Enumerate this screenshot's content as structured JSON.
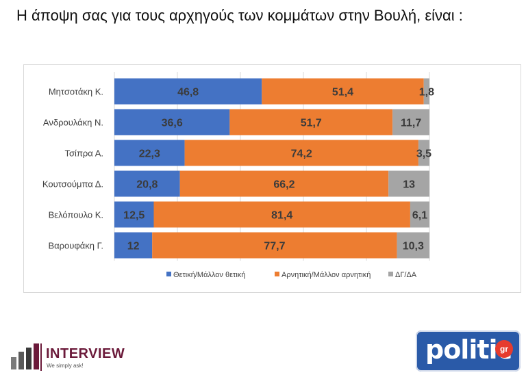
{
  "title": "Η άποψη σας για τους αρχηγούς των κομμάτων στην Βουλή,  είναι :",
  "chart_data": {
    "type": "bar",
    "orientation": "horizontal",
    "stacked": true,
    "title": "",
    "categories": [
      "Μητσοτάκη Κ.",
      "Ανδρουλάκη Ν.",
      "Τσίπρα Α.",
      "Κουτσούμπα Δ.",
      "Βελόπουλο Κ.",
      "Βαρουφάκη Γ."
    ],
    "series": [
      {
        "name": "Θετική/Μάλλον θετική",
        "color": "#4472c4",
        "values": [
          46.8,
          36.6,
          22.3,
          20.8,
          12.5,
          12
        ]
      },
      {
        "name": "Αρνητική/Μάλλον αρνητική",
        "color": "#ed7d31",
        "values": [
          51.4,
          51.7,
          74.2,
          66.2,
          81.4,
          77.7
        ]
      },
      {
        "name": "ΔΓ/ΔΑ",
        "color": "#a5a5a5",
        "values": [
          1.8,
          11.7,
          3.5,
          13,
          6.1,
          10.3
        ]
      }
    ],
    "xlim": [
      0,
      100
    ],
    "gridlines": true,
    "legend_position": "bottom"
  },
  "logos": {
    "interview_name": "INTERVIEW",
    "interview_tagline": "We simply ask!",
    "politic_name": "politic",
    "politic_suffix": "gr"
  }
}
